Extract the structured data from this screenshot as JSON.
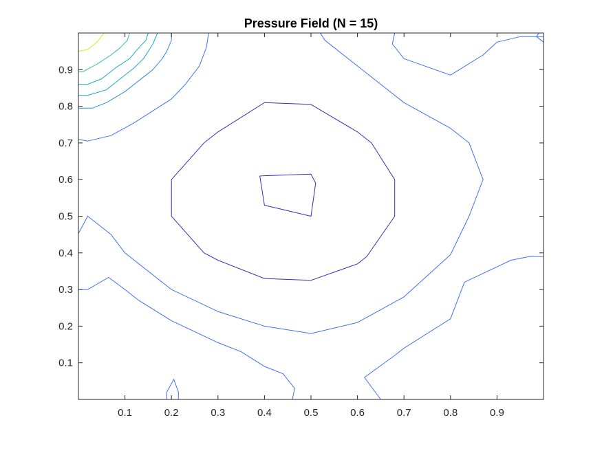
{
  "chart_data": {
    "type": "contour",
    "title": "Pressure Field (N = 15)",
    "xlabel": "",
    "ylabel": "",
    "xlim": [
      0.0,
      1.0
    ],
    "ylim": [
      0.0,
      1.0
    ],
    "x_ticks": [
      0.1,
      0.2,
      0.3,
      0.4,
      0.5,
      0.6,
      0.7,
      0.8,
      0.9
    ],
    "y_ticks": [
      0.1,
      0.2,
      0.3,
      0.4,
      0.5,
      0.6,
      0.7,
      0.8,
      0.9
    ],
    "x_tick_labels": [
      "0.1",
      "0.2",
      "0.3",
      "0.4",
      "0.5",
      "0.6",
      "0.7",
      "0.8",
      "0.9"
    ],
    "y_tick_labels": [
      "0.1",
      "0.2",
      "0.3",
      "0.4",
      "0.5",
      "0.6",
      "0.7",
      "0.8",
      "0.9"
    ],
    "grid": false,
    "colormap": "parula",
    "contours": [
      {
        "color": "#3030b8",
        "points": [
          [
            0.39,
            0.61
          ],
          [
            0.5,
            0.615
          ],
          [
            0.51,
            0.59
          ],
          [
            0.5,
            0.5
          ],
          [
            0.4,
            0.53
          ],
          [
            0.39,
            0.61
          ]
        ]
      },
      {
        "color": "#3030b8",
        "points": [
          [
            0.4,
            0.81
          ],
          [
            0.5,
            0.805
          ],
          [
            0.6,
            0.73
          ],
          [
            0.63,
            0.7
          ],
          [
            0.68,
            0.6
          ],
          [
            0.68,
            0.5
          ],
          [
            0.62,
            0.39
          ],
          [
            0.6,
            0.37
          ],
          [
            0.5,
            0.325
          ],
          [
            0.4,
            0.33
          ],
          [
            0.3,
            0.38
          ],
          [
            0.27,
            0.4
          ],
          [
            0.2,
            0.5
          ],
          [
            0.2,
            0.6
          ],
          [
            0.27,
            0.7
          ],
          [
            0.3,
            0.73
          ],
          [
            0.4,
            0.81
          ]
        ]
      },
      {
        "color": "#3d70ee",
        "points": [
          [
            0.0,
            0.453
          ],
          [
            0.02,
            0.5
          ],
          [
            0.07,
            0.45
          ],
          [
            0.1,
            0.4
          ],
          [
            0.2,
            0.3
          ],
          [
            0.3,
            0.24
          ],
          [
            0.4,
            0.2
          ],
          [
            0.5,
            0.18
          ],
          [
            0.6,
            0.21
          ],
          [
            0.7,
            0.28
          ],
          [
            0.8,
            0.395
          ],
          [
            0.84,
            0.5
          ],
          [
            0.87,
            0.6
          ],
          [
            0.84,
            0.7
          ],
          [
            0.8,
            0.74
          ],
          [
            0.7,
            0.81
          ],
          [
            0.6,
            0.91
          ],
          [
            0.53,
            0.98
          ],
          [
            0.52,
            1.0
          ]
        ]
      },
      {
        "color": "#3d70ee",
        "points": [
          [
            0.0,
            0.3
          ],
          [
            0.02,
            0.3
          ],
          [
            0.065,
            0.333
          ],
          [
            0.1,
            0.3
          ],
          [
            0.13,
            0.27
          ],
          [
            0.2,
            0.215
          ],
          [
            0.3,
            0.155
          ],
          [
            0.35,
            0.13
          ],
          [
            0.4,
            0.09
          ],
          [
            0.44,
            0.07
          ],
          [
            0.465,
            0.03
          ],
          [
            0.46,
            0.0
          ]
        ]
      },
      {
        "color": "#3d70ee",
        "points": [
          [
            0.19,
            0.0
          ],
          [
            0.19,
            0.02
          ],
          [
            0.205,
            0.055
          ],
          [
            0.215,
            0.02
          ],
          [
            0.215,
            0.0
          ]
        ]
      },
      {
        "color": "#3d70ee",
        "points": [
          [
            0.65,
            0.0
          ],
          [
            0.615,
            0.06
          ],
          [
            0.68,
            0.12
          ],
          [
            0.7,
            0.14
          ],
          [
            0.8,
            0.22
          ],
          [
            0.83,
            0.32
          ],
          [
            0.93,
            0.38
          ],
          [
            0.97,
            0.39
          ],
          [
            1.0,
            0.39
          ]
        ]
      },
      {
        "color": "#3d70ee",
        "points": [
          [
            0.68,
            1.0
          ],
          [
            0.675,
            0.97
          ],
          [
            0.7,
            0.93
          ],
          [
            0.8,
            0.885
          ],
          [
            0.87,
            0.94
          ],
          [
            0.9,
            0.975
          ],
          [
            0.95,
            0.99
          ],
          [
            1.0,
            0.99
          ]
        ]
      },
      {
        "color": "#3d70ee",
        "points": [
          [
            0.99,
            1.0
          ],
          [
            0.985,
            0.99
          ],
          [
            1.0,
            0.975
          ]
        ]
      },
      {
        "color": "#3d70ee",
        "points": [
          [
            0.0,
            0.71
          ],
          [
            0.02,
            0.705
          ],
          [
            0.07,
            0.72
          ],
          [
            0.12,
            0.755
          ],
          [
            0.2,
            0.82
          ],
          [
            0.23,
            0.86
          ],
          [
            0.26,
            0.91
          ],
          [
            0.275,
            0.96
          ],
          [
            0.28,
            1.0
          ]
        ]
      },
      {
        "color": "#2b8ce0",
        "points": [
          [
            0.0,
            0.795
          ],
          [
            0.03,
            0.795
          ],
          [
            0.06,
            0.81
          ],
          [
            0.1,
            0.84
          ],
          [
            0.13,
            0.87
          ],
          [
            0.16,
            0.9
          ],
          [
            0.18,
            0.93
          ],
          [
            0.19,
            0.95
          ],
          [
            0.2,
            0.98
          ],
          [
            0.2,
            1.0
          ]
        ]
      },
      {
        "color": "#1ea6c8",
        "points": [
          [
            0.0,
            0.83
          ],
          [
            0.02,
            0.83
          ],
          [
            0.06,
            0.845
          ],
          [
            0.09,
            0.875
          ],
          [
            0.12,
            0.905
          ],
          [
            0.14,
            0.93
          ],
          [
            0.16,
            0.97
          ],
          [
            0.17,
            1.0
          ]
        ]
      },
      {
        "color": "#1ea6c8",
        "points": [
          [
            0.0,
            0.86
          ],
          [
            0.02,
            0.86
          ],
          [
            0.05,
            0.875
          ],
          [
            0.08,
            0.905
          ],
          [
            0.11,
            0.93
          ],
          [
            0.13,
            0.96
          ],
          [
            0.145,
            0.98
          ],
          [
            0.15,
            1.0
          ]
        ]
      },
      {
        "color": "#2fbf9a",
        "points": [
          [
            0.0,
            0.895
          ],
          [
            0.01,
            0.895
          ],
          [
            0.04,
            0.915
          ],
          [
            0.07,
            0.94
          ],
          [
            0.09,
            0.96
          ],
          [
            0.105,
            0.98
          ],
          [
            0.11,
            1.0
          ]
        ]
      },
      {
        "color": "#e8e020",
        "points": [
          [
            0.0,
            0.95
          ],
          [
            0.02,
            0.955
          ],
          [
            0.04,
            0.975
          ],
          [
            0.055,
            1.0
          ]
        ]
      }
    ]
  }
}
